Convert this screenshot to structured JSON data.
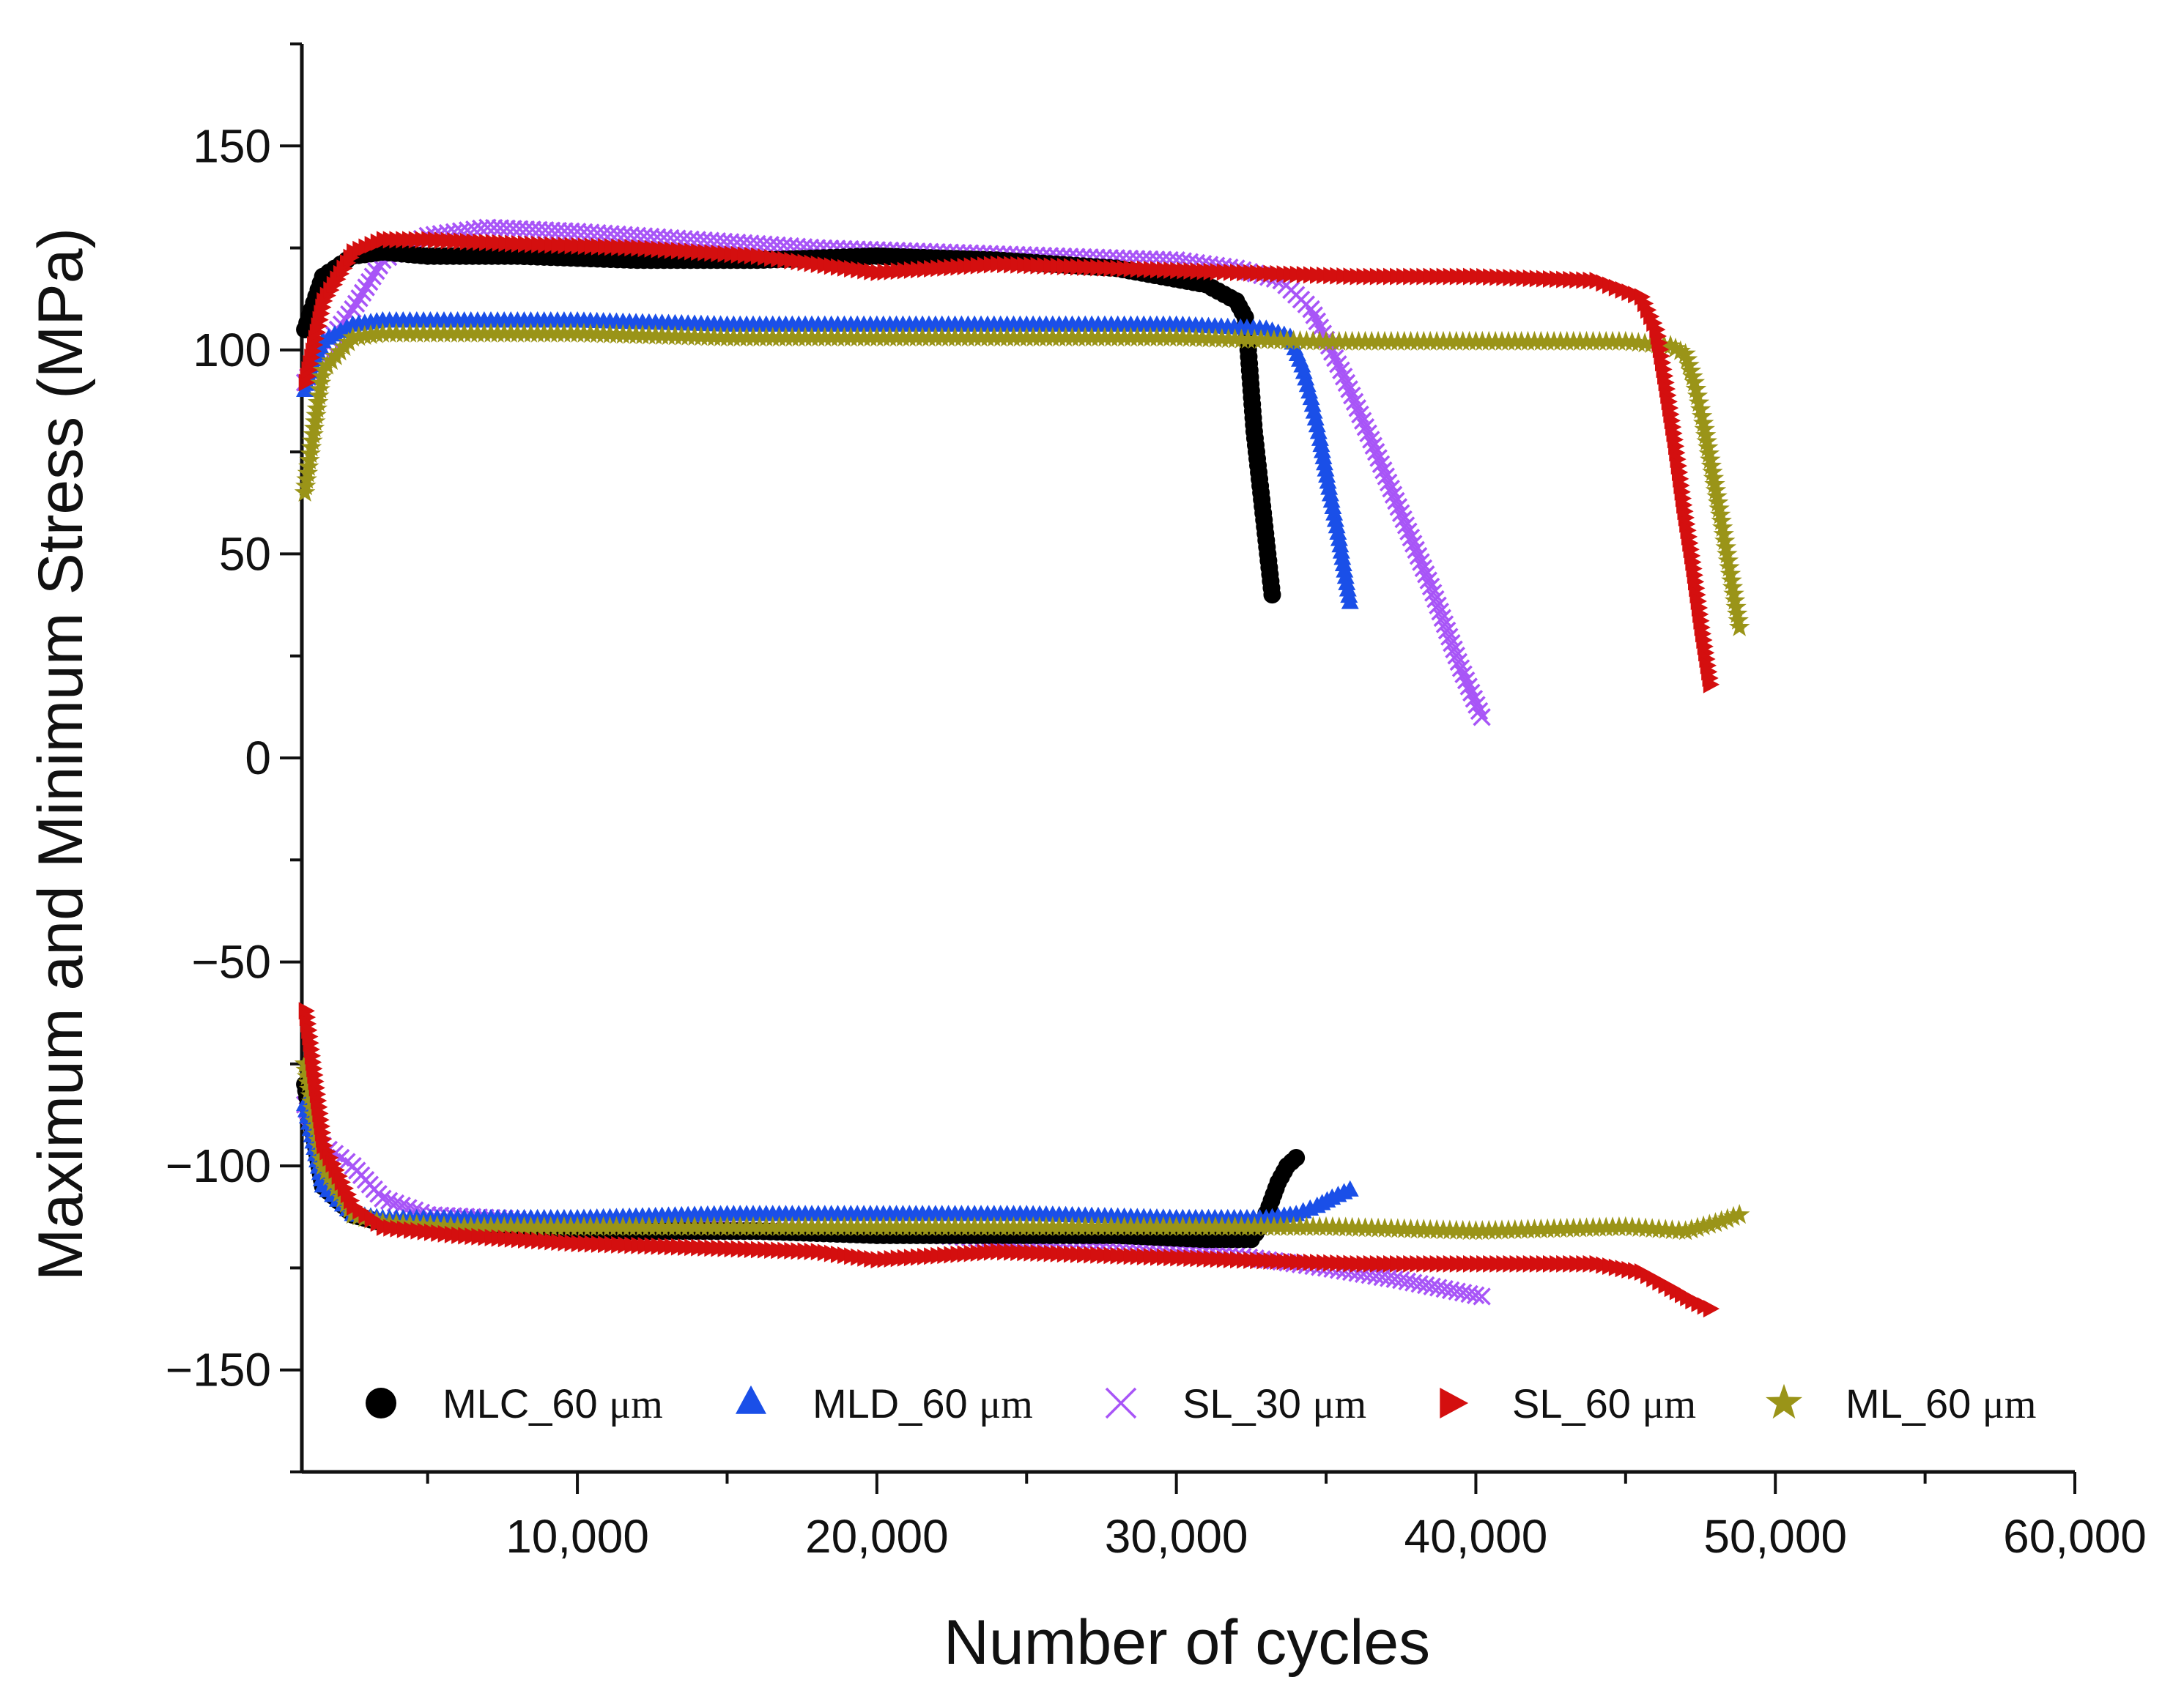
{
  "chart_data": {
    "type": "scatter",
    "xlabel": "Number of cycles",
    "ylabel": "Maximum and Minimum Stress (MPa)",
    "xlim": [
      800,
      60000
    ],
    "ylim": [
      -175,
      175
    ],
    "xticks": [
      10000,
      20000,
      30000,
      40000,
      50000,
      60000
    ],
    "xtick_labels": [
      "10,000",
      "20,000",
      "30,000",
      "40,000",
      "50,000",
      "60,000"
    ],
    "yticks": [
      150,
      100,
      50,
      0,
      -50,
      -100,
      -150
    ],
    "ytick_labels": [
      "150",
      "100",
      "50",
      "0",
      "−50",
      "−100",
      "−150"
    ],
    "legend_position": "bottom",
    "series": [
      {
        "name": "MLC_60",
        "unit": "μm",
        "marker": "circle",
        "color": "#000000",
        "max": {
          "x": [
            900,
            1500,
            2500,
            3500,
            5000,
            8000,
            12000,
            16000,
            20000,
            24000,
            28000,
            31000,
            32000,
            32300,
            32400,
            32500,
            32600,
            32750,
            32900,
            33050,
            33200
          ],
          "y": [
            105,
            118,
            123,
            124,
            123,
            123,
            122,
            122,
            123,
            122,
            120,
            116,
            112,
            108,
            100,
            90,
            80,
            70,
            60,
            50,
            40
          ]
        },
        "min": {
          "x": [
            900,
            1500,
            2500,
            3500,
            5000,
            8000,
            12000,
            16000,
            20000,
            24000,
            28000,
            31000,
            32500,
            32800,
            33100,
            33400,
            33700,
            34000
          ],
          "y": [
            -80,
            -105,
            -112,
            -114,
            -115,
            -115,
            -116,
            -116,
            -117,
            -117,
            -117,
            -118,
            -118,
            -115,
            -110,
            -104,
            -100,
            -98
          ]
        }
      },
      {
        "name": "MLD_60",
        "unit": "μm",
        "marker": "triangle-up",
        "color": "#1a4fe8",
        "max": {
          "x": [
            900,
            1500,
            2500,
            3500,
            6000,
            10000,
            15000,
            20000,
            25000,
            30000,
            33000,
            33800,
            34200,
            34500,
            34800,
            35100,
            35400,
            35800
          ],
          "y": [
            90,
            102,
            106,
            107,
            107,
            107,
            106,
            106,
            106,
            106,
            105,
            103,
            96,
            88,
            78,
            66,
            55,
            38
          ]
        },
        "min": {
          "x": [
            900,
            1500,
            2500,
            3500,
            6000,
            10000,
            15000,
            20000,
            25000,
            30000,
            33000,
            34000,
            34700,
            35200,
            35800
          ],
          "y": [
            -85,
            -105,
            -112,
            -113,
            -113,
            -113,
            -112,
            -112,
            -112,
            -113,
            -113,
            -112,
            -110,
            -108,
            -106
          ]
        }
      },
      {
        "name": "SL_30",
        "unit": "μm",
        "marker": "x",
        "color": "#a855f7",
        "max": {
          "x": [
            900,
            1500,
            2500,
            3500,
            5000,
            7000,
            10000,
            14000,
            18000,
            22000,
            26000,
            30000,
            32000,
            33500,
            34500,
            35500,
            36500,
            37500,
            38500,
            39500,
            40200
          ],
          "y": [
            92,
            100,
            110,
            122,
            128,
            130,
            129,
            127,
            125,
            124,
            123,
            122,
            120,
            117,
            110,
            95,
            78,
            60,
            42,
            22,
            10
          ]
        },
        "min": {
          "x": [
            900,
            1500,
            2500,
            3500,
            5000,
            8000,
            12000,
            16000,
            20000,
            24000,
            28000,
            32000,
            35000,
            37500,
            40200
          ],
          "y": [
            -85,
            -95,
            -100,
            -108,
            -112,
            -113,
            -115,
            -116,
            -116,
            -118,
            -120,
            -122,
            -125,
            -128,
            -132
          ]
        }
      },
      {
        "name": "SL_60",
        "unit": "μm",
        "marker": "triangle-right",
        "color": "#d40f0f",
        "max": {
          "x": [
            900,
            1500,
            2500,
            3500,
            5000,
            8000,
            12000,
            16000,
            20000,
            24000,
            28000,
            32000,
            36000,
            40000,
            44000,
            45500,
            46000,
            46300,
            46600,
            46900,
            47200,
            47500,
            47800
          ],
          "y": [
            92,
            112,
            124,
            127,
            127,
            126,
            125,
            123,
            119,
            121,
            120,
            119,
            118,
            118,
            117,
            113,
            105,
            92,
            78,
            62,
            48,
            32,
            18
          ]
        },
        "min": {
          "x": [
            900,
            1500,
            2500,
            3500,
            6000,
            10000,
            14000,
            18000,
            20000,
            24000,
            28000,
            32000,
            36000,
            40000,
            44000,
            45500,
            46500,
            47200,
            47800
          ],
          "y": [
            -62,
            -95,
            -110,
            -115,
            -117,
            -119,
            -120,
            -121,
            -123,
            -121,
            -122,
            -123,
            -124,
            -124,
            -124,
            -126,
            -130,
            -133,
            -135
          ]
        }
      },
      {
        "name": "ML_60",
        "unit": "μm",
        "marker": "star",
        "color": "#9a9418",
        "max": {
          "x": [
            900,
            1500,
            2500,
            3500,
            6000,
            10000,
            15000,
            20000,
            25000,
            30000,
            35000,
            40000,
            45000,
            46500,
            47000,
            47300,
            47600,
            47900,
            48200,
            48500,
            48800
          ],
          "y": [
            65,
            95,
            103,
            104,
            104,
            104,
            103,
            103,
            103,
            103,
            102,
            102,
            102,
            101,
            99,
            92,
            82,
            70,
            58,
            45,
            32
          ]
        },
        "min": {
          "x": [
            900,
            1500,
            2500,
            3500,
            6000,
            10000,
            15000,
            20000,
            25000,
            30000,
            35000,
            40000,
            45000,
            47000,
            48000,
            48800
          ],
          "y": [
            -75,
            -100,
            -112,
            -114,
            -115,
            -115,
            -115,
            -115,
            -115,
            -115,
            -115,
            -116,
            -115,
            -116,
            -114,
            -112
          ]
        }
      }
    ]
  }
}
